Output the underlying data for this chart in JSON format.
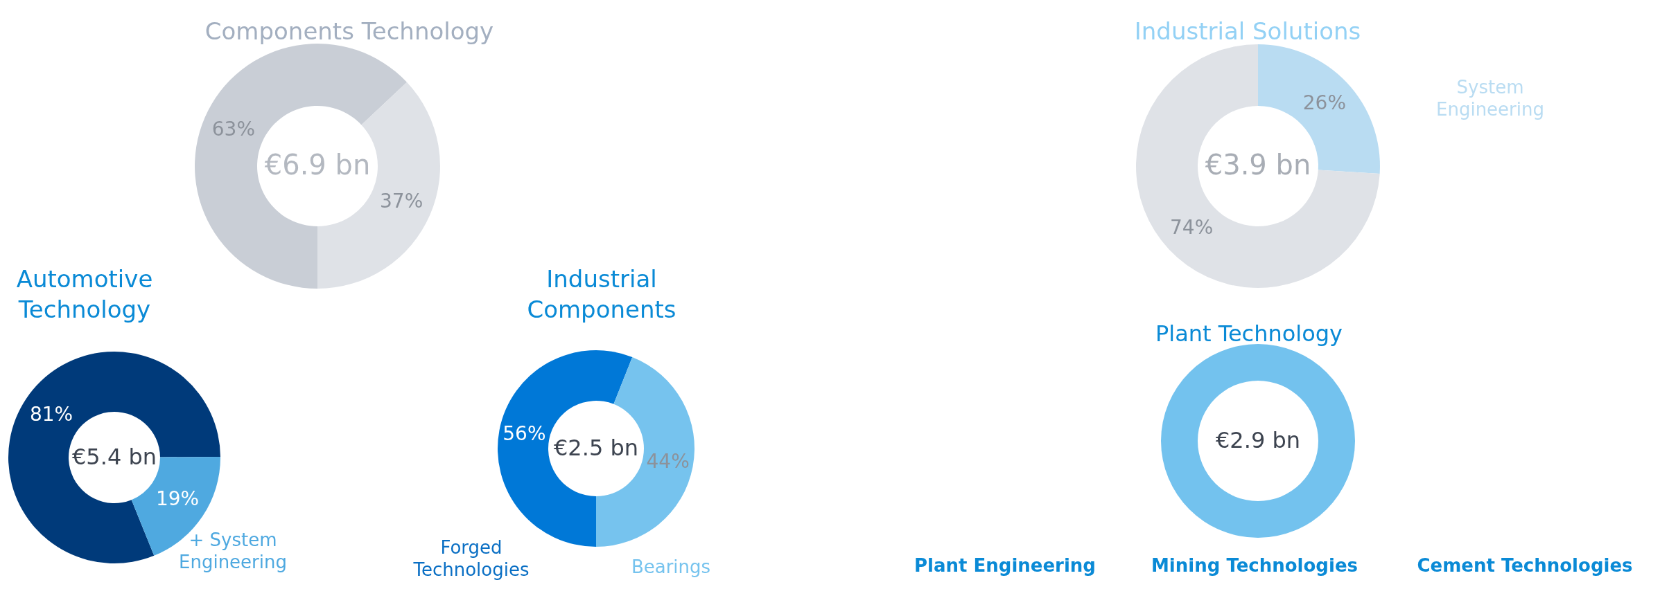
{
  "chart_data": [
    {
      "type": "donut",
      "title": "Components Technology",
      "categories": [
        null,
        null
      ],
      "values": [
        63,
        37
      ],
      "colors": [
        "#c9ced6",
        "#dfe2e7"
      ],
      "value_labels": [
        "63%",
        "37%"
      ],
      "annotations": [
        "€6.9 bn"
      ]
    },
    {
      "type": "donut",
      "title": "Automotive Technology",
      "categories": [
        null,
        "+ System Engineering"
      ],
      "values": [
        81,
        19
      ],
      "colors": [
        "#003a7a",
        "#4fa9e0"
      ],
      "value_labels": [
        "81%",
        "19%"
      ],
      "annotations": [
        "€5.4 bn"
      ]
    },
    {
      "type": "donut",
      "title": "Industrial Components",
      "categories": [
        "Forged Technologies",
        "Bearings"
      ],
      "values": [
        56,
        44
      ],
      "colors": [
        "#0078d7",
        "#76c3ee"
      ],
      "value_labels": [
        "56%",
        "44%"
      ],
      "annotations": [
        "€2.5 bn"
      ]
    },
    {
      "type": "donut",
      "title": "Industrial Solutions",
      "categories": [
        "System Engineering",
        null
      ],
      "values": [
        26,
        74
      ],
      "colors": [
        "#b9dcf2",
        "#dfe2e7"
      ],
      "value_labels": [
        "26%",
        "74%"
      ],
      "annotations": [
        "€3.9 bn"
      ]
    },
    {
      "type": "donut",
      "title": "Plant Technology",
      "categories": [
        null
      ],
      "values": [
        100
      ],
      "colors": [
        "#73c2ee"
      ],
      "annotations": [
        "€2.9 bn",
        "Plant Engineering",
        "Mining Technologies",
        "Cement Technologies"
      ]
    }
  ]
}
